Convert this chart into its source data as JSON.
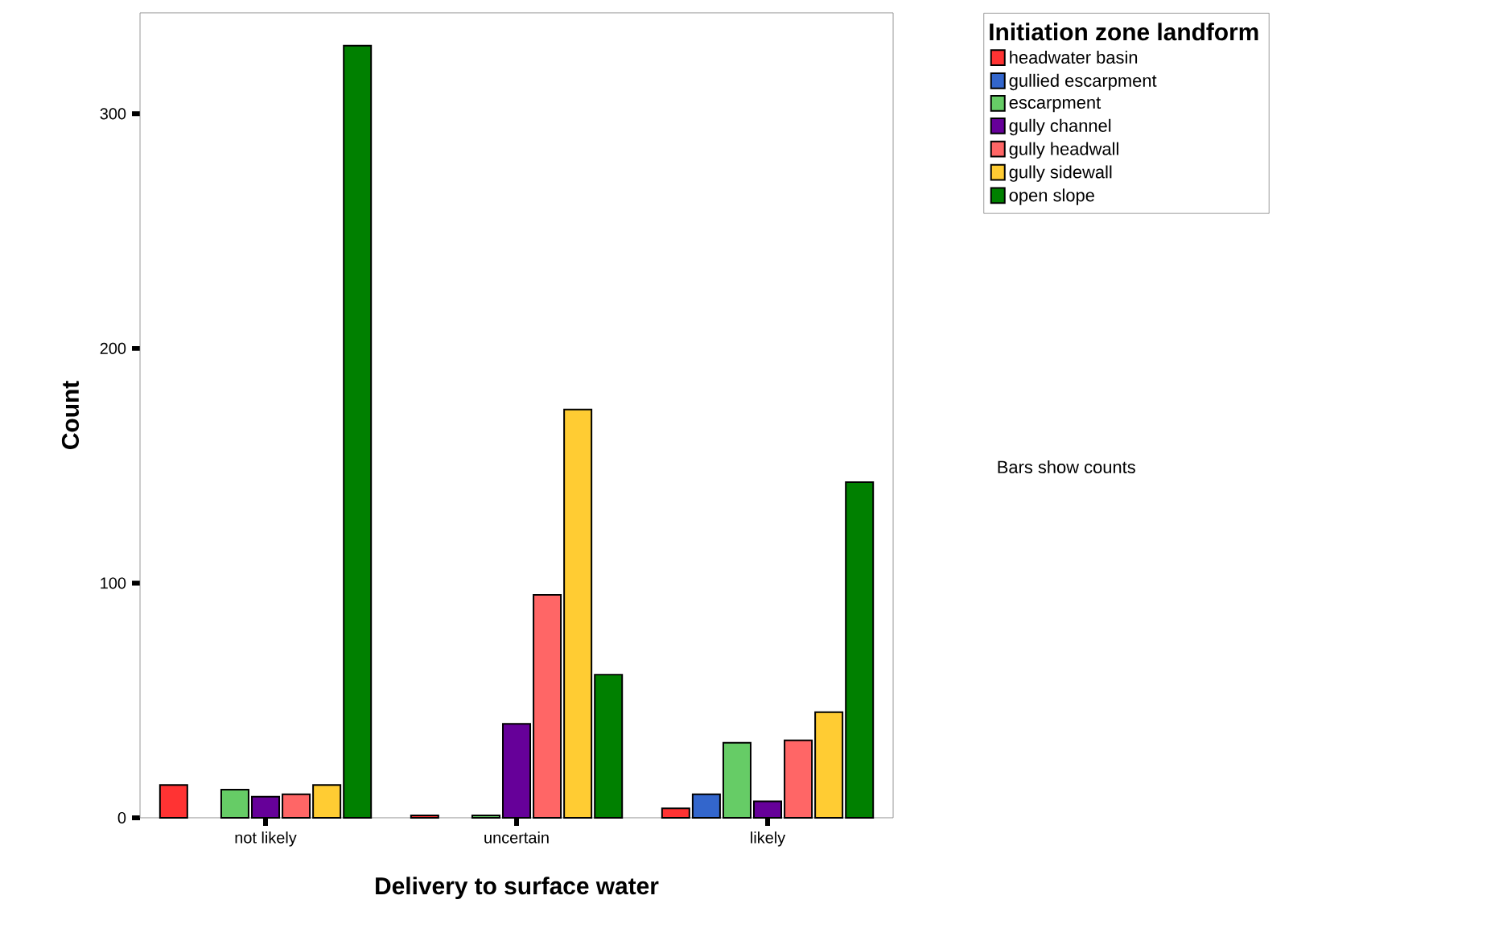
{
  "chart_data": {
    "type": "bar",
    "xlabel": "Delivery to surface water",
    "ylabel": "Count",
    "categories": [
      "not likely",
      "uncertain",
      "likely"
    ],
    "legend": "right",
    "legend_title": "Initiation zone landform",
    "ylim": [
      0,
      343
    ],
    "yticks": [
      0,
      100,
      200,
      300
    ],
    "annotations": [
      "Bars show counts"
    ],
    "series": [
      {
        "name": "headwater basin",
        "color": "#ff3333",
        "values": [
          14,
          1,
          4
        ]
      },
      {
        "name": "gullied escarpment",
        "color": "#3366cc",
        "values": [
          null,
          null,
          10
        ]
      },
      {
        "name": "escarpment",
        "color": "#66cc66",
        "values": [
          12,
          1,
          32
        ]
      },
      {
        "name": "gully channel",
        "color": "#660099",
        "values": [
          9,
          40,
          7
        ]
      },
      {
        "name": "gully headwall",
        "color": "#ff6666",
        "values": [
          10,
          95,
          33
        ]
      },
      {
        "name": "gully sidewall",
        "color": "#ffcc33",
        "values": [
          14,
          174,
          45
        ]
      },
      {
        "name": "open slope",
        "color": "#008000",
        "values": [
          329,
          61,
          143
        ]
      }
    ]
  }
}
